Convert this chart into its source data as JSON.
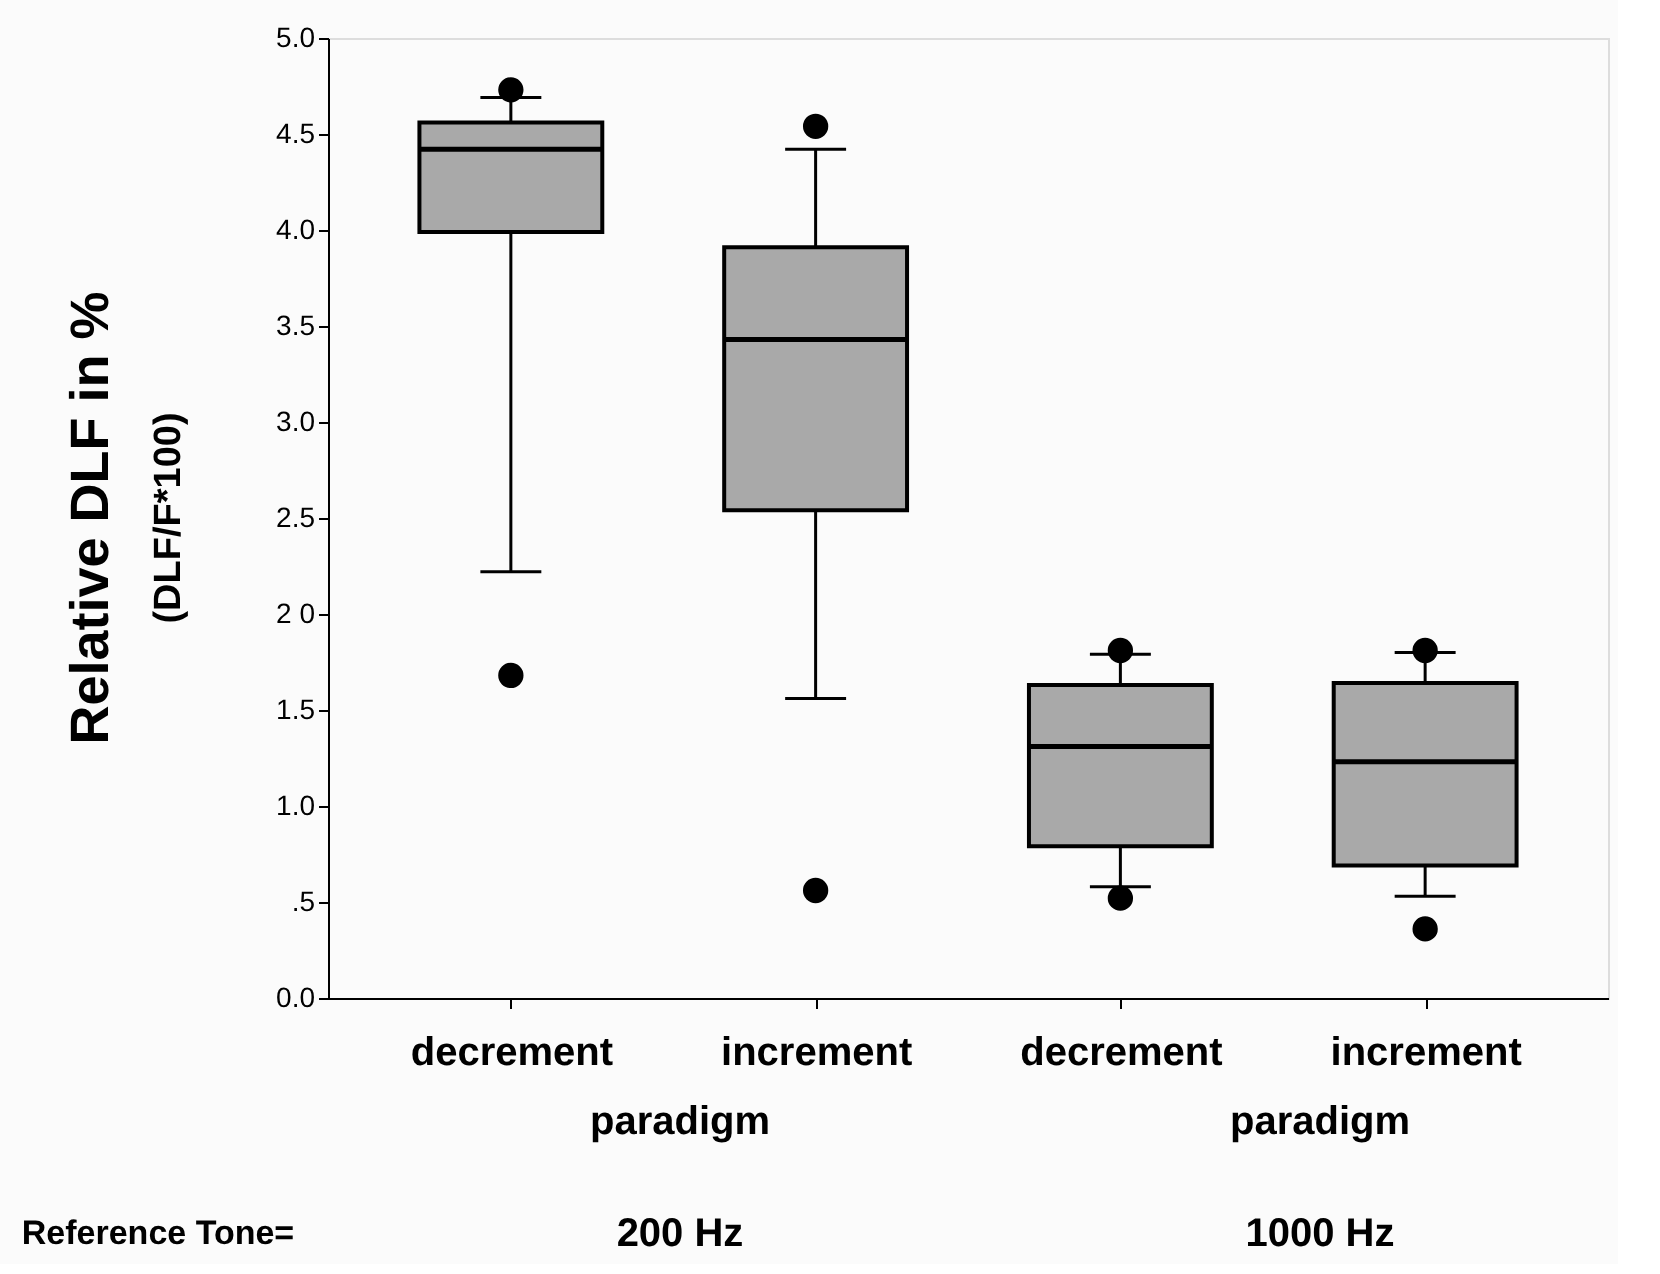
{
  "chart_data": {
    "type": "box",
    "ylabel": "Relative DLF in %",
    "categories": [
      "decrement",
      "increment",
      "decrement",
      "increment"
    ],
    "boxes": [
      {
        "low": 2.22,
        "q1": 3.99,
        "median": 4.42,
        "q3": 4.56,
        "high": 4.69,
        "outliers": [
          4.73,
          1.68
        ]
      },
      {
        "low": 1.56,
        "q1": 2.54,
        "median": 3.43,
        "q3": 3.91,
        "high": 4.42,
        "outliers": [
          4.54,
          0.56
        ]
      },
      {
        "low": 0.58,
        "q1": 0.79,
        "median": 1.31,
        "q3": 1.63,
        "high": 1.79,
        "outliers": [
          1.81,
          0.52
        ]
      },
      {
        "low": 0.53,
        "q1": 0.69,
        "median": 1.23,
        "q3": 1.64,
        "high": 1.8,
        "outliers": [
          1.81,
          0.36
        ]
      }
    ],
    "color": "#a9a9a9",
    "ylim": [
      0,
      5
    ],
    "yticks": [
      {
        "value": 0,
        "label": "0.0"
      },
      {
        "value": 0.5,
        "label": ".5"
      },
      {
        "value": 1,
        "label": "1.0"
      },
      {
        "value": 1.5,
        "label": "1.5"
      },
      {
        "value": 2,
        "label": "2 0"
      },
      {
        "value": 2.5,
        "label": "2.5"
      },
      {
        "value": 3,
        "label": "3.0"
      },
      {
        "value": 3.5,
        "label": "3.5"
      },
      {
        "value": 4,
        "label": "4.0"
      },
      {
        "value": 4.5,
        "label": "4.5"
      },
      {
        "value": 5,
        "label": "5.0"
      }
    ],
    "annotations": [
      "(DLF/F*100)",
      "paradigm",
      "paradigm",
      "200 Hz",
      "1000 Hz",
      "Reference Tone="
    ],
    "grid": false
  }
}
